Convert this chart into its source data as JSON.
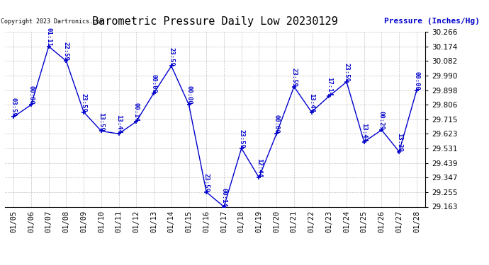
{
  "title": "Barometric Pressure Daily Low 20230129",
  "ylabel": "Pressure (Inches/Hg)",
  "copyright": "Copyright 2023 Dartronics.com",
  "background_color": "#ffffff",
  "line_color": "#0000cc",
  "text_color": "#0000cc",
  "grid_color": "#888888",
  "ylim": [
    29.163,
    30.266
  ],
  "yticks": [
    29.163,
    29.255,
    29.347,
    29.439,
    29.531,
    29.623,
    29.715,
    29.806,
    29.898,
    29.99,
    30.082,
    30.174,
    30.266
  ],
  "dates": [
    "01/05",
    "01/06",
    "01/07",
    "01/08",
    "01/09",
    "01/10",
    "01/11",
    "01/12",
    "01/13",
    "01/14",
    "01/15",
    "01/16",
    "01/17",
    "01/18",
    "01/19",
    "01/20",
    "01/21",
    "01/22",
    "01/23",
    "01/24",
    "01/25",
    "01/26",
    "01/27",
    "01/28"
  ],
  "values": [
    29.73,
    29.806,
    30.174,
    30.082,
    29.76,
    29.64,
    29.623,
    29.7,
    29.88,
    30.05,
    29.806,
    29.255,
    29.163,
    29.531,
    29.347,
    29.623,
    29.92,
    29.76,
    29.86,
    29.95,
    29.572,
    29.647,
    29.51,
    29.898
  ],
  "time_labels": [
    "03:59",
    "00:00",
    "01:11",
    "22:59",
    "23:59",
    "13:59",
    "13:44",
    "00:14",
    "00:00",
    "23:59",
    "00:00",
    "23:59",
    "00:14",
    "23:59",
    "12:44",
    "00:00",
    "23:59",
    "13:44",
    "17:14",
    "23:59",
    "13:44",
    "00:29",
    "13:29",
    "00:00"
  ],
  "title_fontsize": 11,
  "label_fontsize": 8,
  "tick_fontsize": 7.5,
  "annot_fontsize": 6.5
}
